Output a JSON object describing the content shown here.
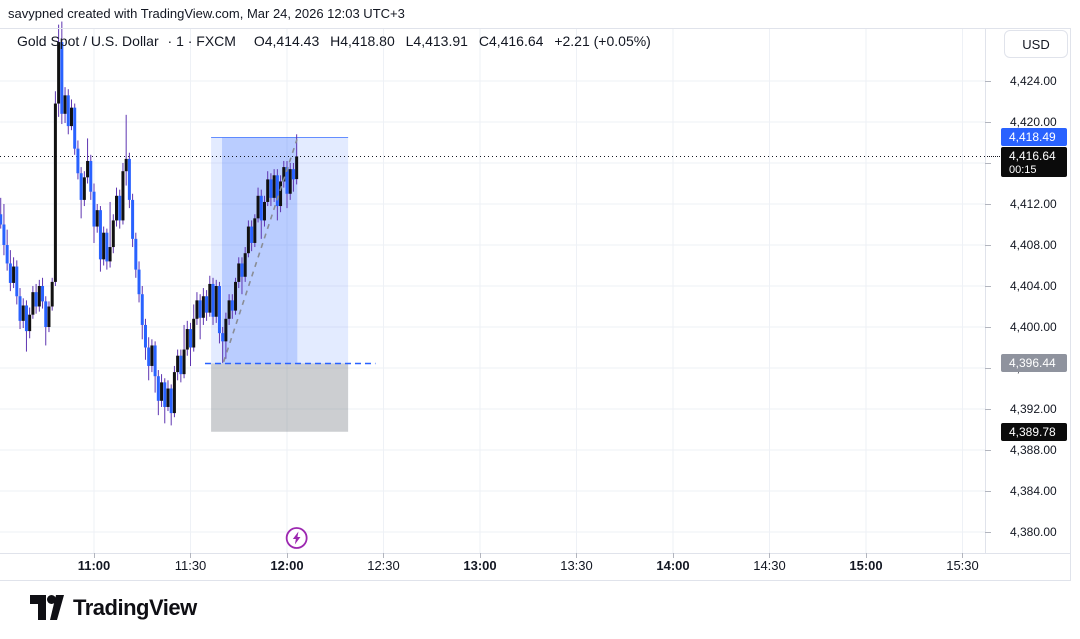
{
  "attribution": "savypned created with TradingView.com, Mar 24, 2026 12:03 UTC+3",
  "header": {
    "title": "Gold Spot / U.S. Dollar",
    "meta": "· 1 · FXCM",
    "ohlc": {
      "open": "O4,414.43",
      "high": "H4,418.80",
      "low": "L4,413.91",
      "close": "C4,416.64",
      "change": "+2.21 (+0.05%)"
    }
  },
  "currency_button": "USD",
  "footer": {
    "brand": "TradingView"
  },
  "chart_data": {
    "type": "candlestick",
    "symbol": "Gold Spot / U.S. Dollar",
    "interval": "1",
    "exchange": "FXCM",
    "last_candle": {
      "open": 4414.43,
      "high": 4418.8,
      "low": 4413.91,
      "close": 4416.64,
      "change": "+2.21 (+0.05%)",
      "countdown": "00:15"
    },
    "y_axis": {
      "ticks": [
        4424,
        4420,
        4416,
        4412,
        4408,
        4404,
        4400,
        4396,
        4392,
        4388,
        4384,
        4380
      ],
      "top_price": 4433.4,
      "bottom_price": 4377.8
    },
    "x_axis": {
      "ticks": [
        {
          "label": "11:00",
          "m": 660,
          "bold": true
        },
        {
          "label": "11:30",
          "m": 690,
          "bold": false
        },
        {
          "label": "12:00",
          "m": 720,
          "bold": true
        },
        {
          "label": "12:30",
          "m": 750,
          "bold": false
        },
        {
          "label": "13:00",
          "m": 780,
          "bold": true
        },
        {
          "label": "13:30",
          "m": 810,
          "bold": false
        },
        {
          "label": "14:00",
          "m": 840,
          "bold": true
        },
        {
          "label": "14:30",
          "m": 870,
          "bold": false
        },
        {
          "label": "15:00",
          "m": 900,
          "bold": true
        },
        {
          "label": "15:30",
          "m": 930,
          "bold": false
        }
      ]
    },
    "price_labels": [
      {
        "text": "4,418.49",
        "price": 4418.49,
        "style": "blue",
        "role": "target"
      },
      {
        "text": "4,416.64",
        "price": 4416.64,
        "style": "black",
        "sub": "00:15",
        "role": "last-price"
      },
      {
        "text": "4,396.44",
        "price": 4396.44,
        "style": "gray",
        "role": "entry"
      },
      {
        "text": "4,389.78",
        "price": 4389.78,
        "style": "black",
        "role": "stop"
      }
    ],
    "tools": {
      "long_position": {
        "entry": 4396.44,
        "target": 4418.49,
        "stop": 4389.78,
        "t_start": 696.4,
        "t_end": 739.0,
        "entry_line_t1": 694.5,
        "entry_line_t2": 747.5
      },
      "rectangle": {
        "t1": 699.8,
        "t2": 723.2,
        "p_top": 4418.49,
        "p_bottom": 4396.44
      },
      "trend_line": {
        "t1": 700.3,
        "p1": 4396.6,
        "t2": 723.1,
        "p2": 4418.3
      },
      "event_marker": {
        "t": 723,
        "icon": "flash"
      }
    },
    "colors": {
      "up": "#111111",
      "down": "#2962ff",
      "wick": "#5e35b1",
      "grid": "#eef1f6",
      "axis_text": "#131722",
      "close_line": "#131722",
      "profit_fill": "rgba(41,98,255,0.13)",
      "zone_fill": "rgba(41,98,255,0.22)",
      "stop_fill": "rgba(122,125,135,0.38)",
      "entry_line": "#2962ff",
      "trend_line": "#8a8d96",
      "marker": "#9c27b0",
      "label_blue_bg": "#2962ff",
      "label_gray_bg": "#8f939e",
      "label_black_bg": "#0b0b0b",
      "separator": "#e0e3eb",
      "tick": "#b2b5be"
    },
    "candles": [
      [
        631,
        4411.0,
        4412.6,
        4409.6,
        4410.0
      ],
      [
        632,
        4410.0,
        4412.0,
        4407.0,
        4408.0
      ],
      [
        633,
        4408.0,
        4409.5,
        4405.5,
        4406.2
      ],
      [
        634,
        4406.2,
        4407.5,
        4403.5,
        4404.3
      ],
      [
        635,
        4404.3,
        4406.8,
        4403.8,
        4405.9
      ],
      [
        636,
        4405.9,
        4406.5,
        4402.2,
        4403.0
      ],
      [
        637,
        4403.0,
        4403.8,
        4399.8,
        4400.6
      ],
      [
        638,
        4400.6,
        4402.8,
        4399.9,
        4402.1
      ],
      [
        639,
        4402.1,
        4402.6,
        4397.6,
        4399.6
      ],
      [
        640,
        4399.6,
        4401.9,
        4398.9,
        4401.2
      ],
      [
        641,
        4401.2,
        4404.0,
        4400.8,
        4403.4
      ],
      [
        642,
        4403.4,
        4404.2,
        4401.3,
        4402.0
      ],
      [
        643,
        4402.0,
        4404.6,
        4401.5,
        4404.0
      ],
      [
        644,
        4404.0,
        4404.8,
        4401.8,
        4402.5
      ],
      [
        645,
        4402.5,
        4403.0,
        4398.2,
        4400.0
      ],
      [
        646,
        4400.0,
        4402.5,
        4399.5,
        4402.0
      ],
      [
        647,
        4402.0,
        4404.8,
        4401.6,
        4404.4
      ],
      [
        648,
        4404.4,
        4423.0,
        4404.0,
        4421.8
      ],
      [
        649,
        4421.8,
        4429.5,
        4420.5,
        4427.8
      ],
      [
        650,
        4427.8,
        4429.8,
        4419.8,
        4420.8
      ],
      [
        651,
        4420.8,
        4423.4,
        4419.9,
        4422.6
      ],
      [
        652,
        4422.6,
        4423.2,
        4418.8,
        4419.6
      ],
      [
        653,
        4419.6,
        4422.2,
        4419.2,
        4421.4
      ],
      [
        654,
        4421.4,
        4421.8,
        4416.8,
        4417.4
      ],
      [
        655,
        4417.4,
        4418.2,
        4414.4,
        4415.0
      ],
      [
        656,
        4415.0,
        4415.6,
        4410.6,
        4412.4
      ],
      [
        657,
        4412.4,
        4415.2,
        4411.8,
        4414.6
      ],
      [
        658,
        4414.6,
        4418.4,
        4414.0,
        4416.2
      ],
      [
        659,
        4416.2,
        4416.8,
        4412.4,
        4413.2
      ],
      [
        660,
        4413.2,
        4414.0,
        4408.2,
        4409.8
      ],
      [
        661,
        4409.8,
        4412.0,
        4409.2,
        4411.4
      ],
      [
        662,
        4411.4,
        4411.8,
        4405.4,
        4406.6
      ],
      [
        663,
        4406.6,
        4409.8,
        4406.0,
        4409.2
      ],
      [
        664,
        4409.2,
        4409.6,
        4405.6,
        4406.4
      ],
      [
        665,
        4406.4,
        4412.2,
        4405.8,
        4407.8
      ],
      [
        666,
        4407.8,
        4411.0,
        4407.2,
        4410.4
      ],
      [
        667,
        4410.4,
        4413.6,
        4409.8,
        4412.8
      ],
      [
        668,
        4412.8,
        4413.4,
        4409.6,
        4410.4
      ],
      [
        669,
        4410.4,
        4416.0,
        4410.0,
        4415.2
      ],
      [
        670,
        4415.2,
        4420.7,
        4413.8,
        4416.4
      ],
      [
        671,
        4416.4,
        4417.0,
        4411.6,
        4412.4
      ],
      [
        672,
        4412.4,
        4413.0,
        4407.8,
        4408.6
      ],
      [
        673,
        4408.6,
        4409.2,
        4404.8,
        4405.6
      ],
      [
        674,
        4405.6,
        4406.4,
        4402.4,
        4403.2
      ],
      [
        675,
        4403.2,
        4404.0,
        4398.8,
        4400.2
      ],
      [
        676,
        4400.2,
        4400.8,
        4396.8,
        4398.0
      ],
      [
        677,
        4398.0,
        4399.0,
        4394.8,
        4396.2
      ],
      [
        678,
        4396.2,
        4398.8,
        4395.6,
        4398.2
      ],
      [
        679,
        4398.2,
        4398.6,
        4393.6,
        4395.2
      ],
      [
        680,
        4395.2,
        4395.8,
        4391.4,
        4392.8
      ],
      [
        681,
        4392.8,
        4395.4,
        4392.2,
        4394.6
      ],
      [
        682,
        4394.6,
        4395.0,
        4390.6,
        4392.2
      ],
      [
        683,
        4392.2,
        4394.8,
        4391.8,
        4394.0
      ],
      [
        684,
        4394.0,
        4394.4,
        4390.4,
        4391.6
      ],
      [
        685,
        4391.6,
        4396.2,
        4391.2,
        4395.6
      ],
      [
        686,
        4395.6,
        4397.8,
        4394.8,
        4397.2
      ],
      [
        687,
        4397.2,
        4397.8,
        4394.6,
        4395.4
      ],
      [
        688,
        4395.4,
        4400.2,
        4395.0,
        4397.8
      ],
      [
        689,
        4397.8,
        4400.6,
        4397.2,
        4399.8
      ],
      [
        690,
        4399.8,
        4400.4,
        4396.2,
        4398.0
      ],
      [
        691,
        4398.0,
        4402.2,
        4397.6,
        4400.8
      ],
      [
        692,
        4400.8,
        4403.4,
        4400.2,
        4402.6
      ],
      [
        693,
        4402.6,
        4403.2,
        4398.8,
        4400.9
      ],
      [
        694,
        4400.9,
        4403.8,
        4400.2,
        4403.0
      ],
      [
        695,
        4403.0,
        4403.6,
        4400.6,
        4401.4
      ],
      [
        696,
        4401.4,
        4405.0,
        4401.0,
        4404.2
      ],
      [
        697,
        4404.2,
        4404.8,
        4400.2,
        4401.0
      ],
      [
        698,
        4401.0,
        4404.6,
        4400.4,
        4404.0
      ],
      [
        699,
        4404.0,
        4404.4,
        4398.4,
        4399.4
      ],
      [
        700,
        4399.4,
        4400.0,
        4396.5,
        4398.6
      ],
      [
        701,
        4398.6,
        4401.4,
        4396.9,
        4400.8
      ],
      [
        702,
        4400.8,
        4403.2,
        4400.2,
        4402.6
      ],
      [
        703,
        4402.6,
        4403.2,
        4400.8,
        4401.6
      ],
      [
        704,
        4401.6,
        4404.8,
        4401.2,
        4404.4
      ],
      [
        705,
        4404.4,
        4406.8,
        4403.8,
        4406.2
      ],
      [
        706,
        4406.2,
        4406.8,
        4403.2,
        4404.9
      ],
      [
        707,
        4404.9,
        4407.8,
        4404.4,
        4407.2
      ],
      [
        708,
        4407.2,
        4410.4,
        4406.8,
        4409.8
      ],
      [
        709,
        4409.8,
        4410.4,
        4407.4,
        4408.2
      ],
      [
        710,
        4408.2,
        4411.0,
        4407.8,
        4410.6
      ],
      [
        711,
        4410.6,
        4413.6,
        4410.2,
        4412.8
      ],
      [
        712,
        4412.8,
        4413.4,
        4408.6,
        4410.4
      ],
      [
        713,
        4410.4,
        4412.8,
        4409.8,
        4412.2
      ],
      [
        714,
        4412.2,
        4415.2,
        4411.8,
        4414.4
      ],
      [
        715,
        4414.4,
        4415.0,
        4411.8,
        4412.6
      ],
      [
        716,
        4412.6,
        4415.4,
        4412.2,
        4414.8
      ],
      [
        717,
        4414.8,
        4415.4,
        4410.4,
        4411.8
      ],
      [
        718,
        4411.8,
        4414.8,
        4411.2,
        4414.2
      ],
      [
        719,
        4414.2,
        4416.2,
        4413.6,
        4415.6
      ],
      [
        720,
        4415.6,
        4416.2,
        4411.6,
        4413.0
      ],
      [
        721,
        4413.0,
        4416.0,
        4412.4,
        4415.4
      ],
      [
        722,
        4415.4,
        4416.0,
        4413.2,
        4414.4
      ],
      [
        723,
        4414.43,
        4418.8,
        4413.91,
        4416.64
      ]
    ]
  }
}
